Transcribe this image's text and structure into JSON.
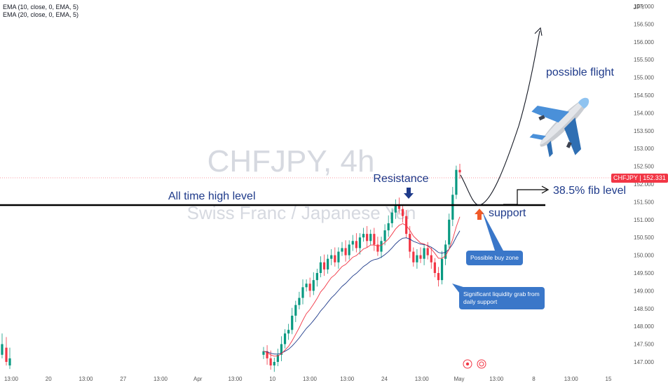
{
  "watermark": {
    "symbol": "CHFJPY, 4h",
    "description": "Swiss Franc / Japanese Yen"
  },
  "indicators": [
    {
      "label": "EMA (10, close, 0, EMA, 5)",
      "color": "#f23645"
    },
    {
      "label": "EMA (20, close, 0, EMA, 5)",
      "color": "#1e3a8a"
    }
  ],
  "price_axis": {
    "unit": "JPY",
    "current_price_label": "CHFJPY",
    "current_price": "152.331"
  },
  "annotations": {
    "all_time_high": "All time high level",
    "resistance": "Resistance",
    "fib": "38.5% fib level",
    "support": "support",
    "possible_flight": "possible flight",
    "buy_zone": "Possible buy zone",
    "liquidity_line1": "Significant liquidity grab from",
    "liquidity_line2": "daily support"
  },
  "colors": {
    "up": "#089981",
    "down": "#f23645",
    "ema10": "#f23645",
    "ema20": "#1e3a8a",
    "callout": "#3a77c9",
    "annotation_text": "#1e3a8a",
    "resistance_arrow": "#1e3a8a",
    "support_arrow": "#f05a28"
  },
  "chart_data": {
    "type": "candlestick",
    "title": "CHFJPY, 4h",
    "subtitle": "Swiss Franc / Japanese Yen",
    "ylim": [
      146.9,
      157.2
    ],
    "y_ticks": [
      "147.000",
      "147.500",
      "148.000",
      "148.500",
      "149.000",
      "149.500",
      "150.000",
      "150.500",
      "151.000",
      "151.500",
      "152.000",
      "152.500",
      "153.000",
      "153.500",
      "154.000",
      "154.500",
      "155.000",
      "155.500",
      "156.000",
      "156.500",
      "157.000"
    ],
    "x_ticks": [
      "13:00",
      "20",
      "13:00",
      "27",
      "13:00",
      "Apr",
      "13:00",
      "10",
      "13:00",
      "13:00",
      "24",
      "13:00",
      "May",
      "13:00",
      "8",
      "13:00",
      "15"
    ],
    "levels": {
      "all_time_high": 151.5,
      "fib_38_5": 152.0,
      "current": 152.331
    },
    "series": [
      {
        "name": "CHFJPY",
        "close": [
          147.3,
          147.1,
          146.9,
          147.0,
          147.2,
          147.5,
          147.8,
          147.9,
          148.3,
          148.6,
          148.8,
          149.1,
          149.2,
          149.0,
          149.3,
          149.5,
          149.8,
          149.6,
          149.9,
          150.0,
          149.8,
          150.1,
          150.2,
          150.0,
          150.3,
          150.4,
          150.2,
          150.5,
          150.6,
          150.4,
          150.6,
          150.3,
          150.1,
          150.4,
          150.7,
          150.9,
          151.2,
          151.4,
          151.3,
          151.1,
          150.6,
          150.1,
          149.8,
          150.0,
          149.9,
          150.2,
          150.0,
          149.8,
          149.5,
          149.3,
          149.9,
          150.3,
          151.0,
          151.7,
          152.4,
          152.33
        ]
      }
    ],
    "annotations": [
      "All time high level",
      "Resistance",
      "38.5% fib level",
      "support",
      "possible flight",
      "Possible buy zone",
      "Significant liquidity grab from daily support"
    ]
  }
}
